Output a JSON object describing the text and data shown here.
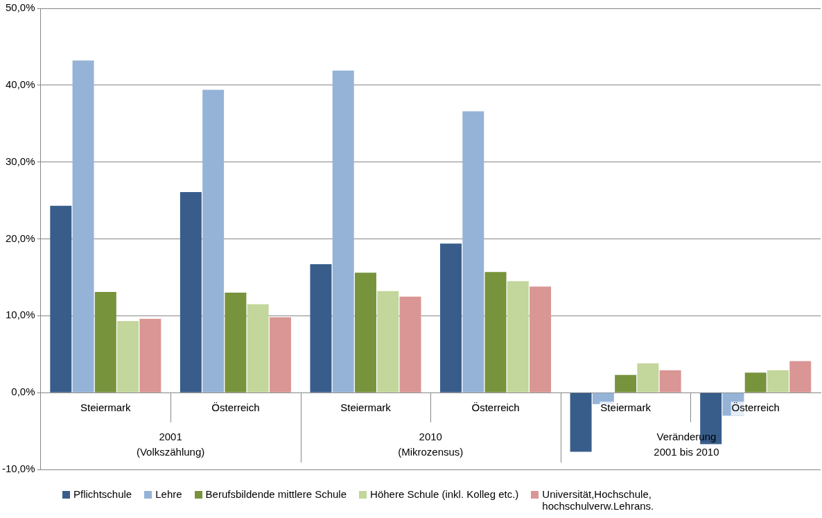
{
  "chart_data": {
    "type": "bar",
    "categories": [
      "Steiermark",
      "Österreich",
      "Steiermark",
      "Österreich",
      "Steiermark",
      "Österreich"
    ],
    "series": [
      {
        "name": "Pflichtschule",
        "color": "#385d8a",
        "values": [
          24.3,
          26.1,
          16.7,
          19.4,
          -7.7,
          -6.7
        ]
      },
      {
        "name": "Lehre",
        "color": "#95b3d7",
        "values": [
          43.2,
          39.4,
          41.9,
          36.6,
          -1.5,
          -3.0
        ]
      },
      {
        "name": "Berufsbildende mittlere Schule",
        "color": "#77933c",
        "values": [
          13.1,
          13.0,
          15.6,
          15.7,
          2.3,
          2.6
        ]
      },
      {
        "name": "Höhere Schule (inkl. Kolleg etc.)",
        "color": "#c3d69b",
        "values": [
          9.3,
          11.5,
          13.2,
          14.5,
          3.8,
          2.9
        ]
      },
      {
        "name": "Universität,Hochschule, hochschulverw.Lehrans.",
        "color": "#d99694",
        "values": [
          9.6,
          9.8,
          12.5,
          13.8,
          2.9,
          4.1
        ]
      }
    ],
    "annotations": [
      "2001\n(Volkszählung)",
      "2010\n(Mikrozensus)",
      "Veränderung\n2001 bis 2010"
    ],
    "ylim": [
      -10,
      50
    ],
    "yticks": [
      {
        "value": -10,
        "label": "-10,0%"
      },
      {
        "value": 0,
        "label": "0,0%"
      },
      {
        "value": 10,
        "label": "10,0%"
      },
      {
        "value": 20,
        "label": "20,0%"
      },
      {
        "value": 30,
        "label": "30,0%"
      },
      {
        "value": 40,
        "label": "40,0%"
      },
      {
        "value": 50,
        "label": "50,0%"
      }
    ],
    "grid": "y",
    "legend": "bottom"
  }
}
